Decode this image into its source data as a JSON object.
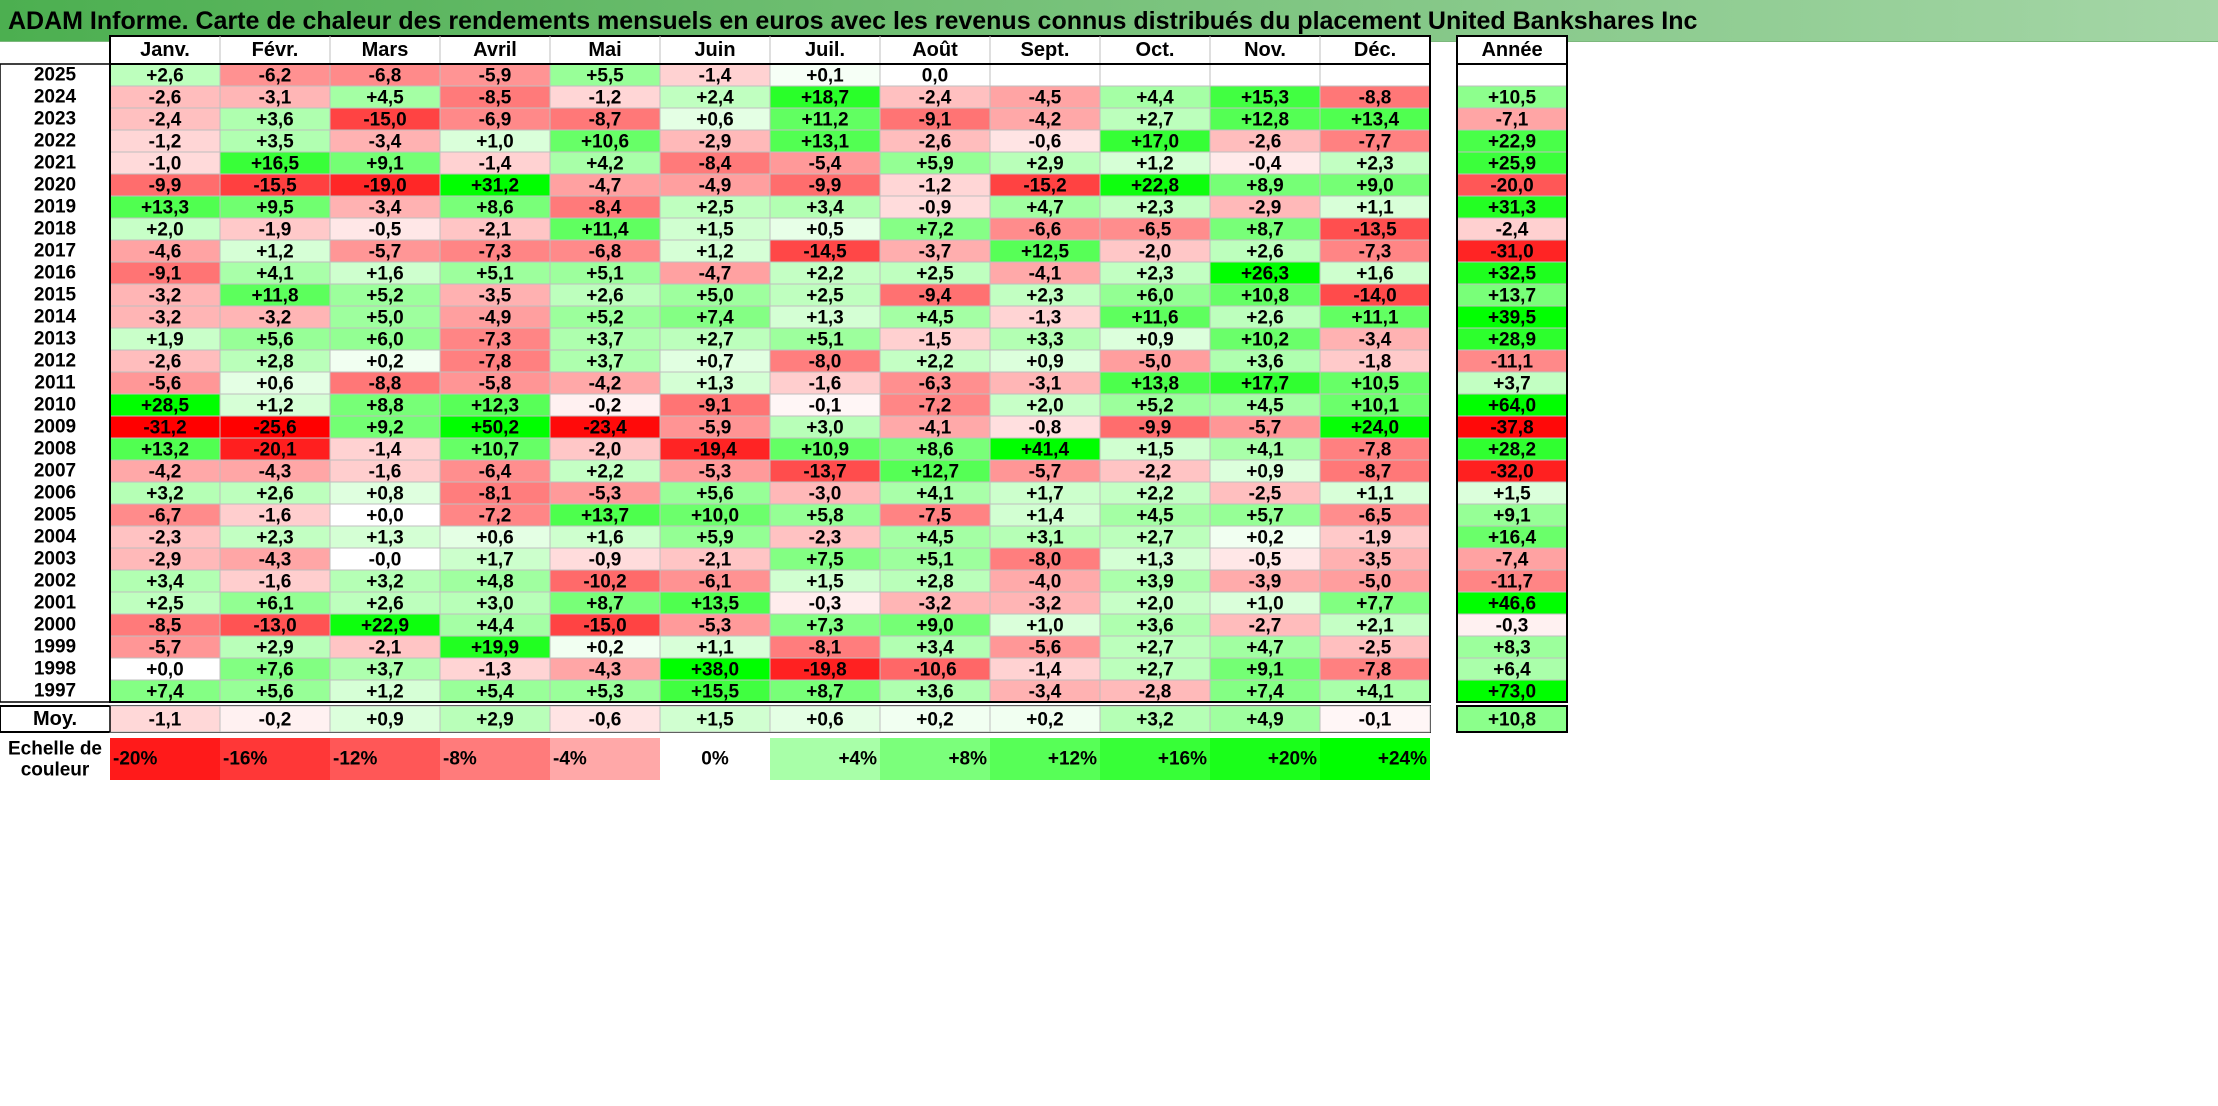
{
  "title": "ADAM Informe. Carte de chaleur des rendements mensuels en euros avec les revenus connus distribués du placement United Bankshares Inc",
  "chart_data": {
    "type": "heatmap",
    "columns": [
      "Janv.",
      "Févr.",
      "Mars",
      "Avril",
      "Mai",
      "Juin",
      "Juil.",
      "Août",
      "Sept.",
      "Oct.",
      "Nov.",
      "Déc."
    ],
    "year_header": "Année",
    "rows": [
      {
        "year": "2025",
        "values": [
          "+2,6",
          "-6,2",
          "-6,8",
          "-5,9",
          "+5,5",
          "-1,4",
          "+0,1",
          "0,0",
          "",
          "",
          "",
          ""
        ],
        "annual": ""
      },
      {
        "year": "2024",
        "values": [
          "-2,6",
          "-3,1",
          "+4,5",
          "-8,5",
          "-1,2",
          "+2,4",
          "+18,7",
          "-2,4",
          "-4,5",
          "+4,4",
          "+15,3",
          "-8,8"
        ],
        "annual": "+10,5"
      },
      {
        "year": "2023",
        "values": [
          "-2,4",
          "+3,6",
          "-15,0",
          "-6,9",
          "-8,7",
          "+0,6",
          "+11,2",
          "-9,1",
          "-4,2",
          "+2,7",
          "+12,8",
          "+13,4"
        ],
        "annual": "-7,1"
      },
      {
        "year": "2022",
        "values": [
          "-1,2",
          "+3,5",
          "-3,4",
          "+1,0",
          "+10,6",
          "-2,9",
          "+13,1",
          "-2,6",
          "-0,6",
          "+17,0",
          "-2,6",
          "-7,7"
        ],
        "annual": "+22,9"
      },
      {
        "year": "2021",
        "values": [
          "-1,0",
          "+16,5",
          "+9,1",
          "-1,4",
          "+4,2",
          "-8,4",
          "-5,4",
          "+5,9",
          "+2,9",
          "+1,2",
          "-0,4",
          "+2,3"
        ],
        "annual": "+25,9"
      },
      {
        "year": "2020",
        "values": [
          "-9,9",
          "-15,5",
          "-19,0",
          "+31,2",
          "-4,7",
          "-4,9",
          "-9,9",
          "-1,2",
          "-15,2",
          "+22,8",
          "+8,9",
          "+9,0"
        ],
        "annual": "-20,0"
      },
      {
        "year": "2019",
        "values": [
          "+13,3",
          "+9,5",
          "-3,4",
          "+8,6",
          "-8,4",
          "+2,5",
          "+3,4",
          "-0,9",
          "+4,7",
          "+2,3",
          "-2,9",
          "+1,1"
        ],
        "annual": "+31,3"
      },
      {
        "year": "2018",
        "values": [
          "+2,0",
          "-1,9",
          "-0,5",
          "-2,1",
          "+11,4",
          "+1,5",
          "+0,5",
          "+7,2",
          "-6,6",
          "-6,5",
          "+8,7",
          "-13,5"
        ],
        "annual": "-2,4"
      },
      {
        "year": "2017",
        "values": [
          "-4,6",
          "+1,2",
          "-5,7",
          "-7,3",
          "-6,8",
          "+1,2",
          "-14,5",
          "-3,7",
          "+12,5",
          "-2,0",
          "+2,6",
          "-7,3"
        ],
        "annual": "-31,0"
      },
      {
        "year": "2016",
        "values": [
          "-9,1",
          "+4,1",
          "+1,6",
          "+5,1",
          "+5,1",
          "-4,7",
          "+2,2",
          "+2,5",
          "-4,1",
          "+2,3",
          "+26,3",
          "+1,6"
        ],
        "annual": "+32,5"
      },
      {
        "year": "2015",
        "values": [
          "-3,2",
          "+11,8",
          "+5,2",
          "-3,5",
          "+2,6",
          "+5,0",
          "+2,5",
          "-9,4",
          "+2,3",
          "+6,0",
          "+10,8",
          "-14,0"
        ],
        "annual": "+13,7"
      },
      {
        "year": "2014",
        "values": [
          "-3,2",
          "-3,2",
          "+5,0",
          "-4,9",
          "+5,2",
          "+7,4",
          "+1,3",
          "+4,5",
          "-1,3",
          "+11,6",
          "+2,6",
          "+11,1"
        ],
        "annual": "+39,5"
      },
      {
        "year": "2013",
        "values": [
          "+1,9",
          "+5,6",
          "+6,0",
          "-7,3",
          "+3,7",
          "+2,7",
          "+5,1",
          "-1,5",
          "+3,3",
          "+0,9",
          "+10,2",
          "-3,4"
        ],
        "annual": "+28,9"
      },
      {
        "year": "2012",
        "values": [
          "-2,6",
          "+2,8",
          "+0,2",
          "-7,8",
          "+3,7",
          "+0,7",
          "-8,0",
          "+2,2",
          "+0,9",
          "-5,0",
          "+3,6",
          "-1,8"
        ],
        "annual": "-11,1"
      },
      {
        "year": "2011",
        "values": [
          "-5,6",
          "+0,6",
          "-8,8",
          "-5,8",
          "-4,2",
          "+1,3",
          "-1,6",
          "-6,3",
          "-3,1",
          "+13,8",
          "+17,7",
          "+10,5"
        ],
        "annual": "+3,7"
      },
      {
        "year": "2010",
        "values": [
          "+28,5",
          "+1,2",
          "+8,8",
          "+12,3",
          "-0,2",
          "-9,1",
          "-0,1",
          "-7,2",
          "+2,0",
          "+5,2",
          "+4,5",
          "+10,1"
        ],
        "annual": "+64,0"
      },
      {
        "year": "2009",
        "values": [
          "-31,2",
          "-25,6",
          "+9,2",
          "+50,2",
          "-23,4",
          "-5,9",
          "+3,0",
          "-4,1",
          "-0,8",
          "-9,9",
          "-5,7",
          "+24,0"
        ],
        "annual": "-37,8"
      },
      {
        "year": "2008",
        "values": [
          "+13,2",
          "-20,1",
          "-1,4",
          "+10,7",
          "-2,0",
          "-19,4",
          "+10,9",
          "+8,6",
          "+41,4",
          "+1,5",
          "+4,1",
          "-7,8"
        ],
        "annual": "+28,2"
      },
      {
        "year": "2007",
        "values": [
          "-4,2",
          "-4,3",
          "-1,6",
          "-6,4",
          "+2,2",
          "-5,3",
          "-13,7",
          "+12,7",
          "-5,7",
          "-2,2",
          "+0,9",
          "-8,7"
        ],
        "annual": "-32,0"
      },
      {
        "year": "2006",
        "values": [
          "+3,2",
          "+2,6",
          "+0,8",
          "-8,1",
          "-5,3",
          "+5,6",
          "-3,0",
          "+4,1",
          "+1,7",
          "+2,2",
          "-2,5",
          "+1,1"
        ],
        "annual": "+1,5"
      },
      {
        "year": "2005",
        "values": [
          "-6,7",
          "-1,6",
          "+0,0",
          "-7,2",
          "+13,7",
          "+10,0",
          "+5,8",
          "-7,5",
          "+1,4",
          "+4,5",
          "+5,7",
          "-6,5"
        ],
        "annual": "+9,1"
      },
      {
        "year": "2004",
        "values": [
          "-2,3",
          "+2,3",
          "+1,3",
          "+0,6",
          "+1,6",
          "+5,9",
          "-2,3",
          "+4,5",
          "+3,1",
          "+2,7",
          "+0,2",
          "-1,9"
        ],
        "annual": "+16,4"
      },
      {
        "year": "2003",
        "values": [
          "-2,9",
          "-4,3",
          "-0,0",
          "+1,7",
          "-0,9",
          "-2,1",
          "+7,5",
          "+5,1",
          "-8,0",
          "+1,3",
          "-0,5",
          "-3,5"
        ],
        "annual": "-7,4"
      },
      {
        "year": "2002",
        "values": [
          "+3,4",
          "-1,6",
          "+3,2",
          "+4,8",
          "-10,2",
          "-6,1",
          "+1,5",
          "+2,8",
          "-4,0",
          "+3,9",
          "-3,9",
          "-5,0"
        ],
        "annual": "-11,7"
      },
      {
        "year": "2001",
        "values": [
          "+2,5",
          "+6,1",
          "+2,6",
          "+3,0",
          "+8,7",
          "+13,5",
          "-0,3",
          "-3,2",
          "-3,2",
          "+2,0",
          "+1,0",
          "+7,7"
        ],
        "annual": "+46,6"
      },
      {
        "year": "2000",
        "values": [
          "-8,5",
          "-13,0",
          "+22,9",
          "+4,4",
          "-15,0",
          "-5,3",
          "+7,3",
          "+9,0",
          "+1,0",
          "+3,6",
          "-2,7",
          "+2,1"
        ],
        "annual": "-0,3"
      },
      {
        "year": "1999",
        "values": [
          "-5,7",
          "+2,9",
          "-2,1",
          "+19,9",
          "+0,2",
          "+1,1",
          "-8,1",
          "+3,4",
          "-5,6",
          "+2,7",
          "+4,7",
          "-2,5"
        ],
        "annual": "+8,3"
      },
      {
        "year": "1998",
        "values": [
          "+0,0",
          "+7,6",
          "+3,7",
          "-1,3",
          "-4,3",
          "+38,0",
          "-19,8",
          "-10,6",
          "-1,4",
          "+2,7",
          "+9,1",
          "-7,8"
        ],
        "annual": "+6,4"
      },
      {
        "year": "1997",
        "values": [
          "+7,4",
          "+5,6",
          "+1,2",
          "+5,4",
          "+5,3",
          "+15,5",
          "+8,7",
          "+3,6",
          "-3,4",
          "-2,8",
          "+7,4",
          "+4,1"
        ],
        "annual": "+73,0"
      }
    ],
    "average": {
      "label": "Moy.",
      "values": [
        "-1,1",
        "-0,2",
        "+0,9",
        "+2,9",
        "-0,6",
        "+1,5",
        "+0,6",
        "+0,2",
        "+0,2",
        "+3,2",
        "+4,9",
        "-0,1"
      ],
      "annual": "+10,8"
    },
    "scale": {
      "label_line1": "Echelle de",
      "label_line2": "couleur",
      "steps": [
        "-20%",
        "-16%",
        "-12%",
        "-8%",
        "-4%",
        "0%",
        "+4%",
        "+8%",
        "+12%",
        "+16%",
        "+20%",
        "+24%"
      ],
      "step_values": [
        -20,
        -16,
        -12,
        -8,
        -4,
        0,
        4,
        8,
        12,
        16,
        20,
        24
      ]
    },
    "colors": {
      "negative_max": "#ff0000",
      "neutral": "#ffffff",
      "positive_max": "#00ff00",
      "grid": "#bfbfbf",
      "border": "#000000",
      "title_gradient_start": "#4caf50",
      "title_gradient_end": "#a5d6a7"
    }
  }
}
